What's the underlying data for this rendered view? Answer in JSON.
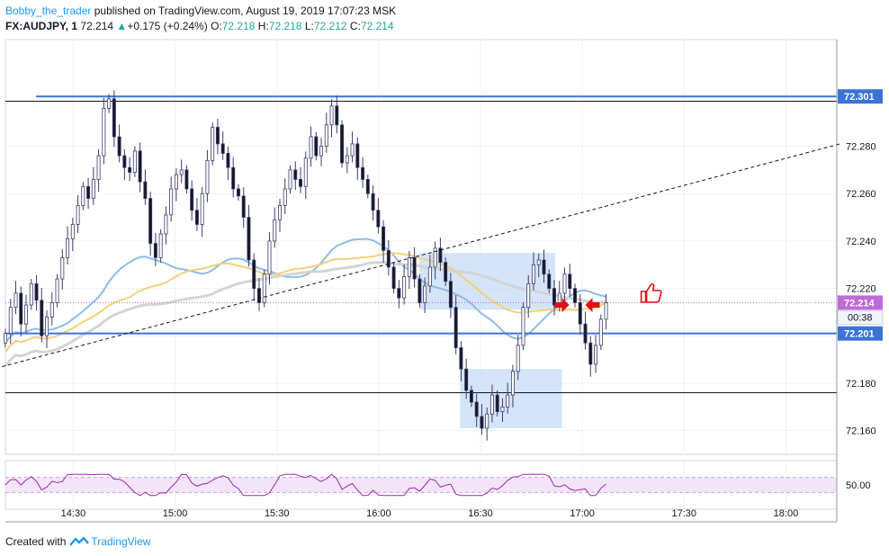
{
  "header": {
    "author": "Bobby_the_trader",
    "published_text": "published on TradingView.com, August 19, 2019 17:07:23 MSK",
    "symbol": "FX:AUDJPY, 1",
    "last_price": "72.214",
    "change_arrow": "▲",
    "change": "+0.175 (+0.24%)",
    "o_label": "O:",
    "o_value": "72.218",
    "h_label": "H:",
    "h_value": "72.218",
    "l_label": "L:",
    "l_value": "72.212",
    "c_label": "C:",
    "c_value": "72.214"
  },
  "footer": {
    "created_with": "Created with",
    "brand": "TradingView"
  },
  "colors": {
    "bull": "#ffffff",
    "bear": "#131722",
    "wick": "#3c3c6e",
    "ma_blue": "#90bbe8",
    "ma_orange": "#f5d07a",
    "ma_gray": "#d4d4d4",
    "level_blue": "#3b74d6",
    "rsi": "#9c27b0",
    "box": "#c6dbf7",
    "badge_blue": "#3b74d6",
    "badge_purple": "#bf6ad8",
    "arrow_red": "#e01010"
  },
  "chart_data": {
    "type": "candlestick",
    "x_ticks": [
      "14:30",
      "15:00",
      "15:30",
      "16:00",
      "16:30",
      "17:00",
      "17:30",
      "18:00"
    ],
    "y_ticks": [
      "72.160",
      "72.180",
      "72.200",
      "72.220",
      "72.240",
      "72.260",
      "72.280"
    ],
    "ylim": [
      72.15,
      72.325
    ],
    "x_range_minutes": [
      "14:10",
      "18:15"
    ],
    "price_labels": {
      "resistance": "72.301",
      "current": "72.214",
      "countdown": "00:38",
      "support": "72.201"
    },
    "levels": [
      {
        "kind": "resistance",
        "value": 72.301
      },
      {
        "kind": "support",
        "value": 72.201
      },
      {
        "kind": "black_line",
        "value": 72.299
      },
      {
        "kind": "black_line",
        "value": 72.176
      }
    ],
    "trend_line": {
      "from": [
        "14:09",
        72.187
      ],
      "to": [
        "18:16",
        72.281
      ]
    },
    "zones": [
      {
        "t0": "16:12",
        "t1": "16:52",
        "p_low": 72.211,
        "p_high": 72.235
      },
      {
        "t0": "16:24",
        "t1": "16:54",
        "p_low": 72.161,
        "p_high": 72.186
      }
    ],
    "candles_close": [
      72.201,
      72.212,
      72.218,
      72.205,
      72.213,
      72.222,
      72.215,
      72.2,
      72.208,
      72.214,
      72.224,
      72.233,
      72.241,
      72.247,
      72.255,
      72.263,
      72.258,
      72.266,
      72.276,
      72.296,
      72.3,
      72.284,
      72.276,
      72.271,
      72.269,
      72.278,
      72.265,
      72.258,
      72.239,
      72.233,
      72.243,
      72.251,
      72.262,
      72.268,
      72.27,
      72.262,
      72.253,
      72.247,
      72.26,
      72.274,
      72.288,
      72.281,
      72.277,
      72.271,
      72.262,
      72.259,
      72.25,
      72.232,
      72.22,
      72.214,
      72.226,
      72.24,
      72.249,
      72.255,
      72.262,
      72.27,
      72.266,
      72.263,
      72.275,
      72.284,
      72.276,
      72.28,
      72.289,
      72.297,
      72.289,
      72.273,
      72.276,
      72.281,
      72.271,
      72.266,
      72.26,
      72.253,
      72.246,
      72.236,
      72.229,
      72.22,
      72.216,
      72.225,
      72.233,
      72.224,
      72.214,
      72.221,
      72.229,
      72.237,
      72.231,
      72.223,
      72.212,
      72.195,
      72.186,
      72.177,
      72.172,
      72.166,
      72.161,
      72.167,
      72.175,
      72.168,
      72.17,
      72.175,
      72.185,
      72.196,
      72.212,
      72.222,
      72.23,
      72.232,
      72.226,
      72.22,
      72.213,
      72.218,
      72.226,
      72.22,
      72.214,
      72.205,
      72.197,
      72.188,
      72.196,
      72.207,
      72.214
    ],
    "moving_averages": [
      {
        "color": "blue",
        "start": 72.194,
        "end": 72.221
      },
      {
        "color": "orange",
        "start": 72.187,
        "end": 72.224
      },
      {
        "color": "gray",
        "start": 72.176,
        "end": 72.222
      }
    ],
    "rsi": {
      "level_label": "50.00",
      "upper": 70,
      "lower": 30
    }
  }
}
